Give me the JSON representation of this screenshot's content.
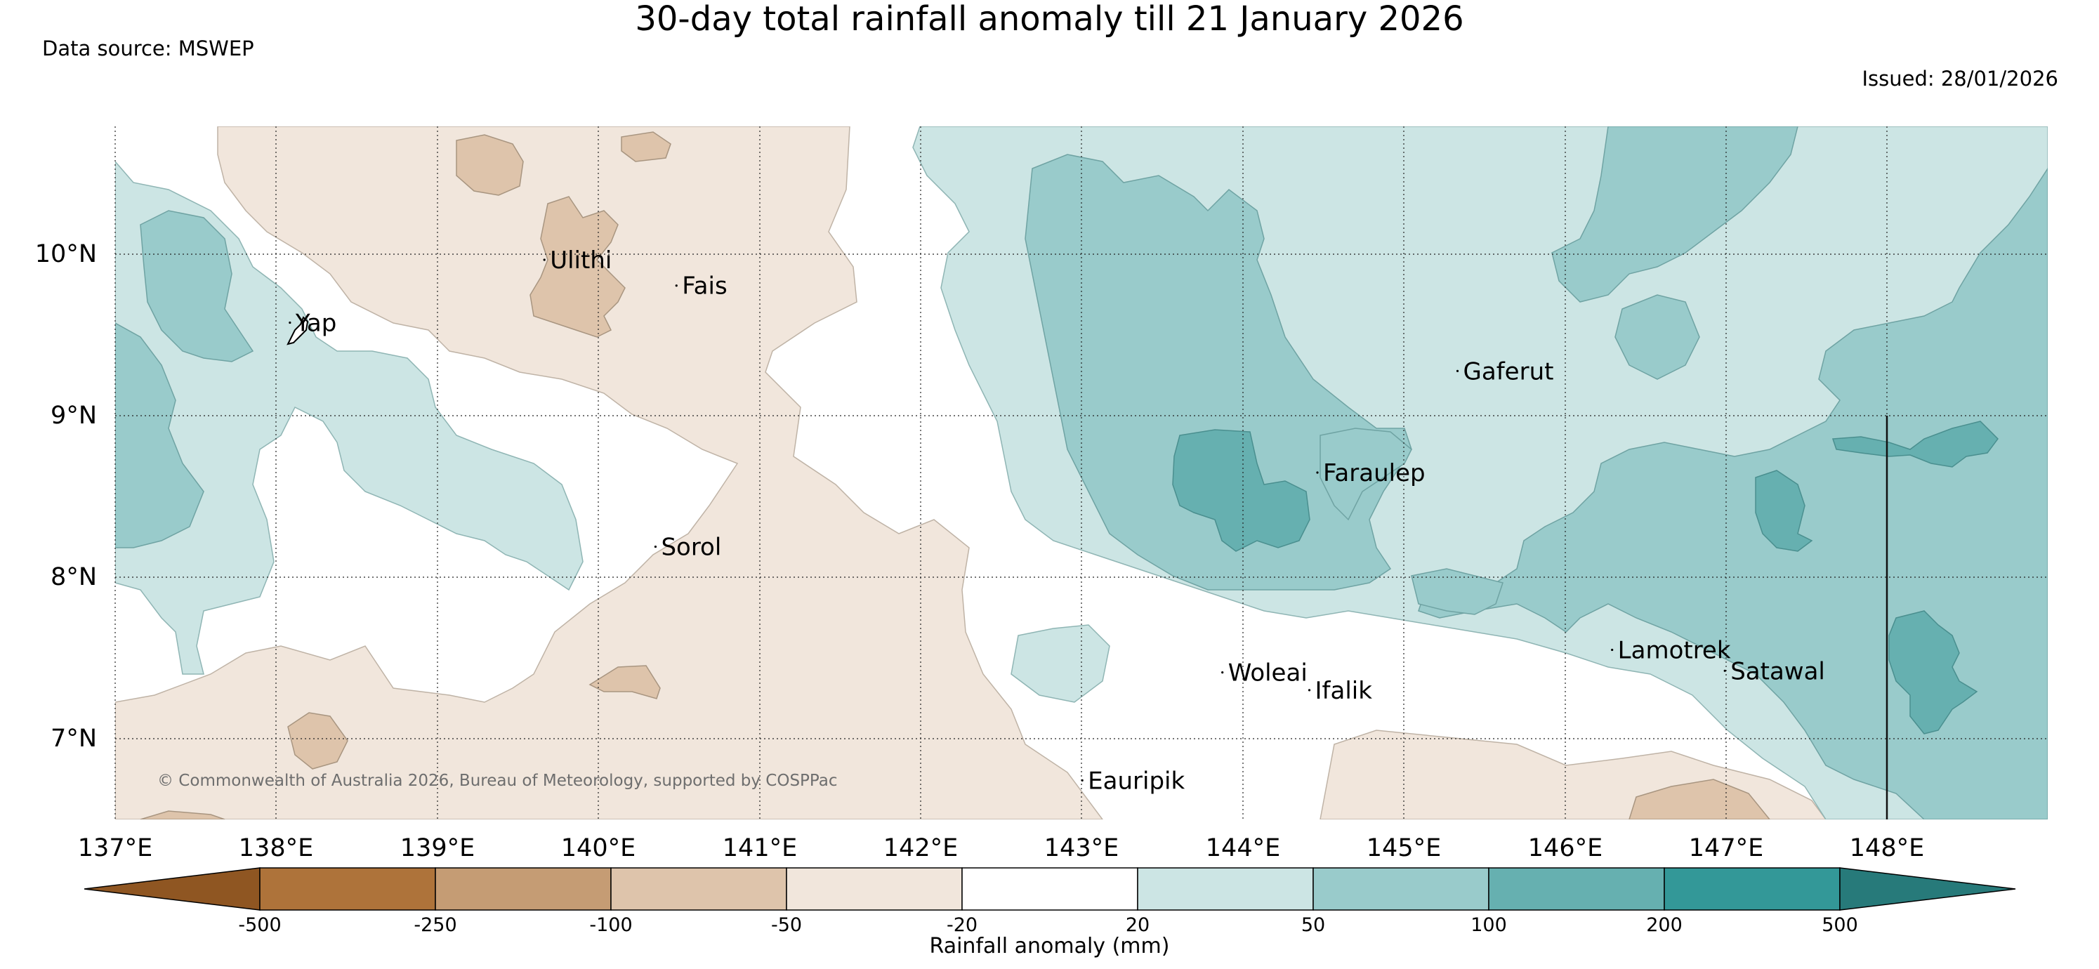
{
  "title": "30-day total rainfall anomaly till 21 January 2026",
  "source": "Data source: MSWEP",
  "issued": "Issued: 28/01/2026",
  "copyright": "© Commonwealth of Australia 2026, Bureau of Meteorology, supported by COSPPac",
  "colorbar": {
    "title": "Rainfall anomaly (mm)",
    "labels": [
      "-500",
      "-250",
      "-100",
      "-50",
      "-20",
      "20",
      "50",
      "100",
      "200",
      "500"
    ],
    "colors": [
      "#8f5622",
      "#ae733a",
      "#c59c74",
      "#dec4ab",
      "#f1e6dc",
      "#ffffff",
      "#cce5e4",
      "#99cbcb",
      "#66b0b0",
      "#339898",
      "#277a7a"
    ]
  },
  "axes": {
    "x_ticks": [
      "137°E",
      "138°E",
      "139°E",
      "140°E",
      "141°E",
      "142°E",
      "143°E",
      "144°E",
      "145°E",
      "146°E",
      "147°E",
      "148°E"
    ],
    "y_ticks": [
      "10°N",
      "9°N",
      "8°N",
      "7°N"
    ],
    "lon_range": [
      137,
      149
    ],
    "lat_range": [
      6.5,
      10.8
    ]
  },
  "places": [
    {
      "name": "Ulithi",
      "lon": 139.7,
      "lat": 9.92
    },
    {
      "name": "Fais",
      "lon": 140.52,
      "lat": 9.76
    },
    {
      "name": "Yap",
      "lon": 138.12,
      "lat": 9.53
    },
    {
      "name": "Gaferut",
      "lon": 145.37,
      "lat": 9.23
    },
    {
      "name": "Faraulep",
      "lon": 144.5,
      "lat": 8.6
    },
    {
      "name": "Sorol",
      "lon": 140.39,
      "lat": 8.14
    },
    {
      "name": "Woleai",
      "lon": 143.91,
      "lat": 7.36
    },
    {
      "name": "Ifalik",
      "lon": 144.45,
      "lat": 7.25
    },
    {
      "name": "Lamotrek",
      "lon": 146.33,
      "lat": 7.5
    },
    {
      "name": "Satawal",
      "lon": 147.03,
      "lat": 7.37
    },
    {
      "name": "Eauripik",
      "lon": 143.04,
      "lat": 6.69
    }
  ]
}
